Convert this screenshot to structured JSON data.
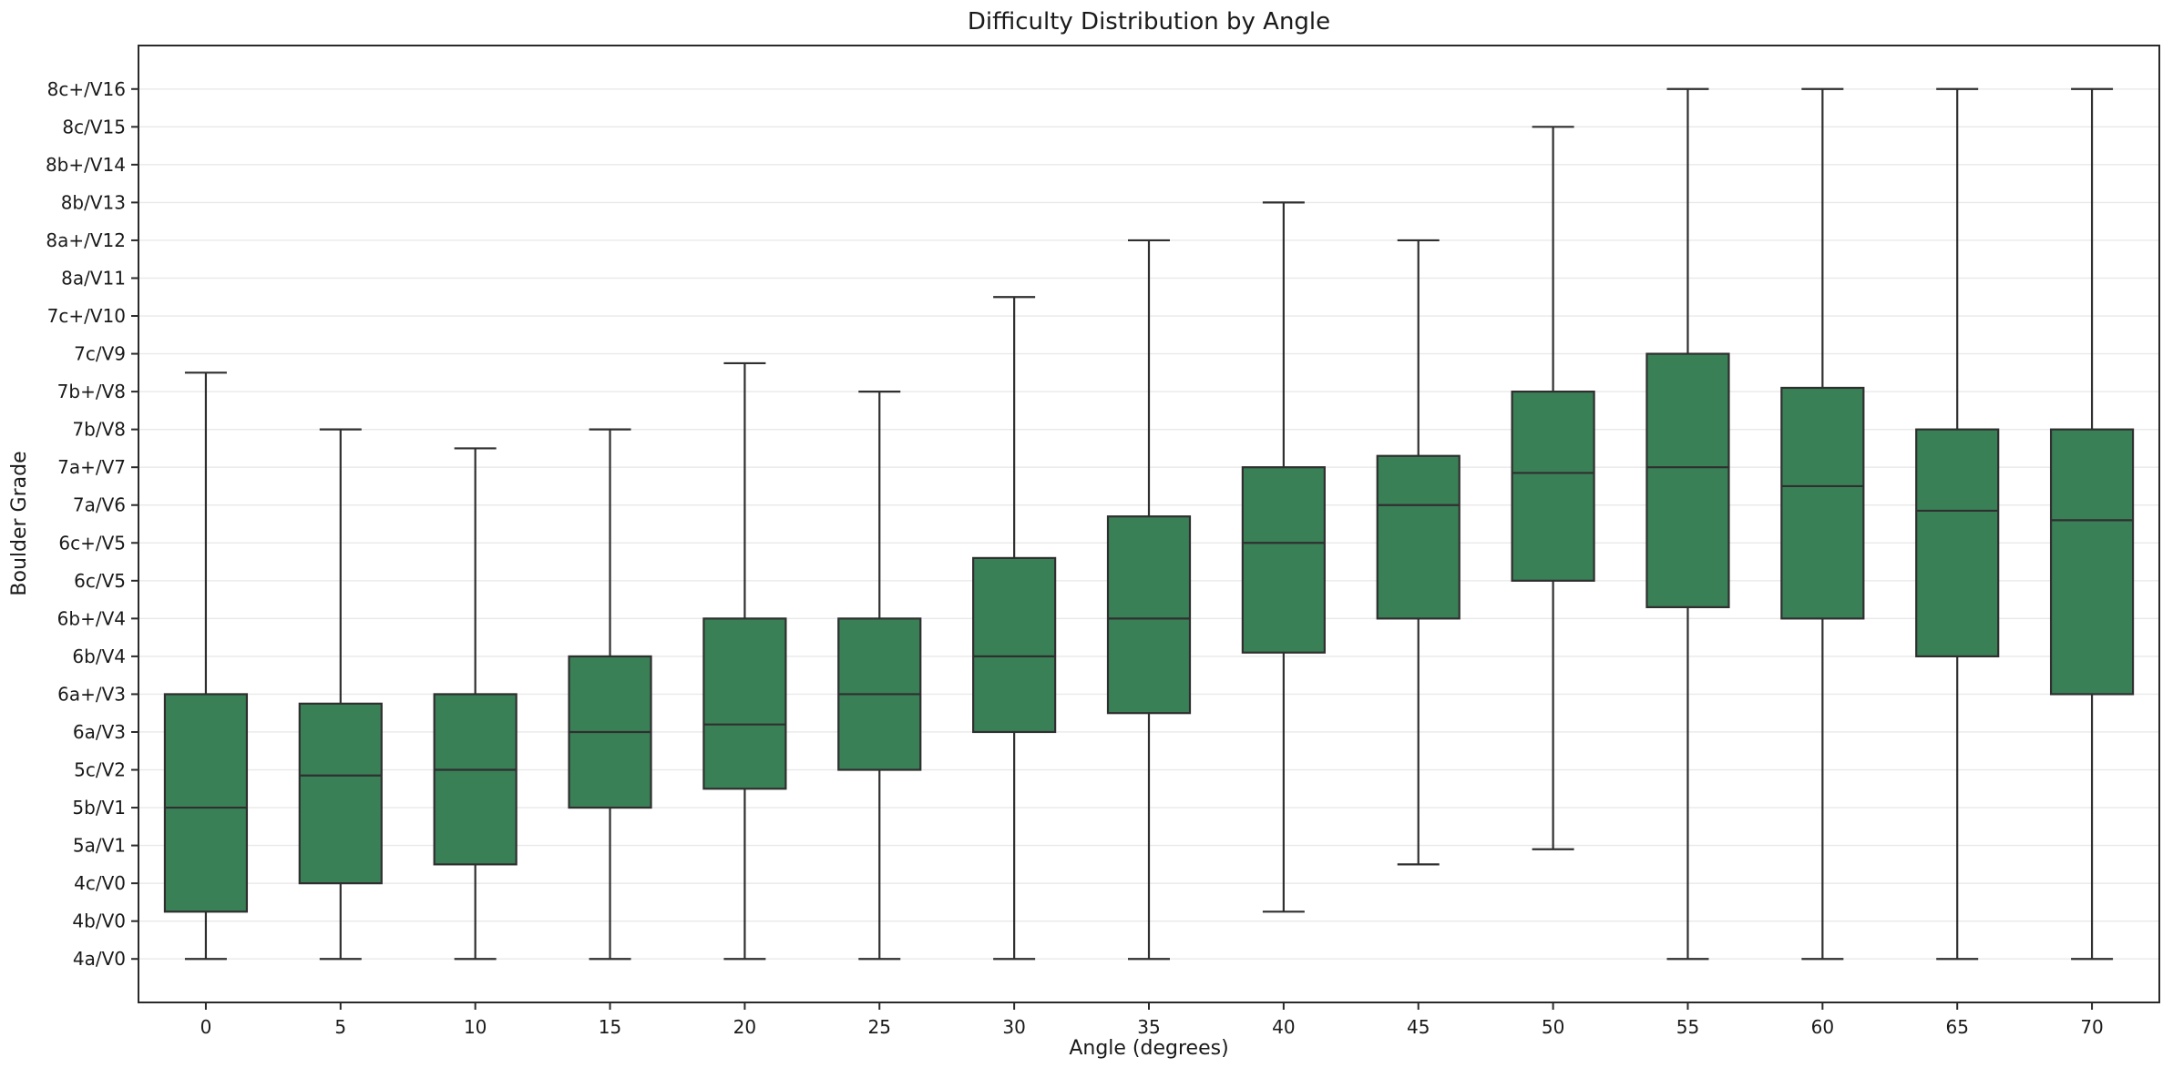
{
  "figure": {
    "title": "Difficulty Distribution by Angle",
    "xlabel": "Angle (degrees)",
    "ylabel": "Boulder Grade"
  },
  "chart_data": {
    "type": "boxplot",
    "title": "Difficulty Distribution by Angle",
    "xlabel": "Angle (degrees)",
    "ylabel": "Boulder Grade",
    "grid": true,
    "legend": "none",
    "x_tick_labels": [
      "0",
      "5",
      "10",
      "15",
      "20",
      "25",
      "30",
      "35",
      "40",
      "45",
      "50",
      "55",
      "60",
      "65",
      "70"
    ],
    "grade_tick_labels": [
      "4a/V0",
      "4b/V0",
      "4c/V0",
      "5a/V1",
      "5b/V1",
      "5c/V2",
      "6a/V3",
      "6a+/V3",
      "6b/V4",
      "6b+/V4",
      "6c/V5",
      "6c+/V5",
      "7a/V6",
      "7a+/V7",
      "7b/V8",
      "7b+/V8",
      "7c/V9",
      "7c+/V10",
      "8a/V11",
      "8a+/V12",
      "8b/V13",
      "8b+/V14",
      "8c/V15",
      "8c+/V16"
    ],
    "ylim": [
      -1.15,
      24.15
    ],
    "y_unit": "grade index (0 = 4a/V0 ... 23 = 8c+/V16)",
    "series": [
      {
        "angle": 0,
        "low": 0,
        "q1": 1.25,
        "median": 4.0,
        "q3": 7.0,
        "high": 15.5
      },
      {
        "angle": 5,
        "low": 0,
        "q1": 2.0,
        "median": 4.85,
        "q3": 6.75,
        "high": 14.0
      },
      {
        "angle": 10,
        "low": 0,
        "q1": 2.5,
        "median": 5.0,
        "q3": 7.0,
        "high": 13.5
      },
      {
        "angle": 15,
        "low": 0,
        "q1": 4.0,
        "median": 6.0,
        "q3": 8.0,
        "high": 14.0
      },
      {
        "angle": 20,
        "low": 0,
        "q1": 4.5,
        "median": 6.2,
        "q3": 9.0,
        "high": 15.75
      },
      {
        "angle": 25,
        "low": 0,
        "q1": 5.0,
        "median": 7.0,
        "q3": 9.0,
        "high": 15.0
      },
      {
        "angle": 30,
        "low": 0,
        "q1": 6.0,
        "median": 8.0,
        "q3": 10.6,
        "high": 17.5
      },
      {
        "angle": 35,
        "low": 0,
        "q1": 6.5,
        "median": 9.0,
        "q3": 11.7,
        "high": 19.0
      },
      {
        "angle": 40,
        "low": 1.25,
        "q1": 8.1,
        "median": 11.0,
        "q3": 13.0,
        "high": 20.0
      },
      {
        "angle": 45,
        "low": 2.5,
        "q1": 9.0,
        "median": 12.0,
        "q3": 13.3,
        "high": 19.0
      },
      {
        "angle": 50,
        "low": 2.9,
        "q1": 10.0,
        "median": 12.85,
        "q3": 15.0,
        "high": 22.0
      },
      {
        "angle": 55,
        "low": 0,
        "q1": 9.3,
        "median": 13.0,
        "q3": 16.0,
        "high": 23.0
      },
      {
        "angle": 60,
        "low": 0,
        "q1": 9.0,
        "median": 12.5,
        "q3": 15.1,
        "high": 23.0
      },
      {
        "angle": 65,
        "low": 0,
        "q1": 8.0,
        "median": 11.85,
        "q3": 14.0,
        "high": 23.0
      },
      {
        "angle": 70,
        "low": 0,
        "q1": 7.0,
        "median": 11.6,
        "q3": 14.0,
        "high": 23.0
      }
    ],
    "colors": {
      "box_fill": "#3a8057",
      "box_edge": "#2f2f2f",
      "whisker": "#2f2f2f",
      "median": "#2f2f2f",
      "gridline": "#e9e9e9",
      "axis": "#2a2a2a",
      "text": "#1a1a1a",
      "background": "#ffffff"
    }
  }
}
